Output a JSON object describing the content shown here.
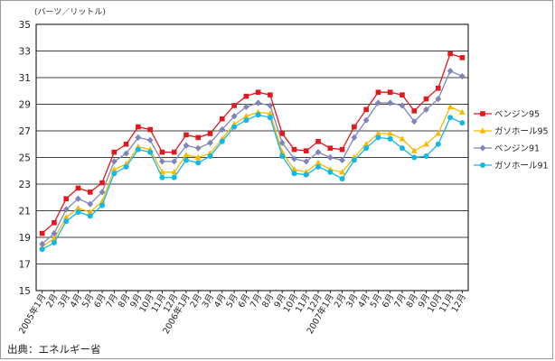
{
  "unit_label": "(バーツ／リットル)",
  "source_label": "出典：エネルギー省",
  "chart_data": {
    "type": "line",
    "ylim": [
      15,
      35
    ],
    "yticks": [
      15,
      17,
      19,
      21,
      23,
      25,
      27,
      29,
      31,
      33,
      35
    ],
    "grid": true,
    "legend_position": "right",
    "categories": [
      "2005年1月",
      "2月",
      "3月",
      "4月",
      "5月",
      "6月",
      "7月",
      "8月",
      "9月",
      "10月",
      "11月",
      "12月",
      "2006年1月",
      "2月",
      "3月",
      "4月",
      "5月",
      "6月",
      "7月",
      "8月",
      "9月",
      "10月",
      "11月",
      "12月",
      "2007年1月",
      "2月",
      "3月",
      "4月",
      "5月",
      "6月",
      "7月",
      "8月",
      "9月",
      "10月",
      "11月",
      "12月"
    ],
    "series": [
      {
        "name": "ベンジン95",
        "color": "#e0191f",
        "marker": "square",
        "values": [
          19.3,
          20.1,
          21.9,
          22.7,
          22.4,
          23.1,
          25.4,
          26.0,
          27.3,
          27.1,
          25.4,
          25.4,
          26.7,
          26.5,
          26.8,
          27.9,
          28.9,
          29.6,
          29.9,
          29.7,
          26.8,
          25.6,
          25.5,
          26.2,
          25.7,
          25.6,
          27.3,
          28.6,
          29.9,
          29.9,
          29.7,
          28.5,
          29.4,
          30.2,
          32.8,
          32.5
        ]
      },
      {
        "name": "ガソホール95",
        "color": "#f6b800",
        "marker": "triangle",
        "values": [
          18.3,
          18.9,
          20.5,
          21.2,
          20.9,
          21.7,
          24.1,
          24.5,
          25.8,
          25.6,
          23.9,
          23.9,
          25.2,
          25.0,
          25.3,
          26.4,
          27.5,
          28.1,
          28.4,
          28.3,
          25.4,
          24.1,
          23.9,
          24.6,
          24.1,
          23.9,
          25.0,
          26.0,
          26.8,
          26.8,
          26.4,
          25.5,
          26.0,
          26.8,
          28.8,
          28.4
        ]
      },
      {
        "name": "ベンジン91",
        "color": "#7e86b8",
        "marker": "diamond",
        "values": [
          18.5,
          19.3,
          21.1,
          21.9,
          21.5,
          22.4,
          24.7,
          25.3,
          26.5,
          26.3,
          24.7,
          24.7,
          25.9,
          25.7,
          26.1,
          27.1,
          28.1,
          28.8,
          29.1,
          28.9,
          26.1,
          24.9,
          24.7,
          25.4,
          25.0,
          24.8,
          26.5,
          27.8,
          29.1,
          29.1,
          28.9,
          27.7,
          28.6,
          29.4,
          31.5,
          31.1
        ]
      },
      {
        "name": "ガソホール91",
        "color": "#14b8e6",
        "marker": "circle",
        "values": [
          18.1,
          18.6,
          20.2,
          20.9,
          20.6,
          21.4,
          23.8,
          24.3,
          25.6,
          25.4,
          23.5,
          23.5,
          24.8,
          24.6,
          25.1,
          26.2,
          27.3,
          27.8,
          28.2,
          28.0,
          25.1,
          23.8,
          23.7,
          24.3,
          23.9,
          23.4,
          24.8,
          25.7,
          26.5,
          26.4,
          25.7,
          25.0,
          25.1,
          26.0,
          28.0,
          27.6
        ]
      }
    ]
  }
}
